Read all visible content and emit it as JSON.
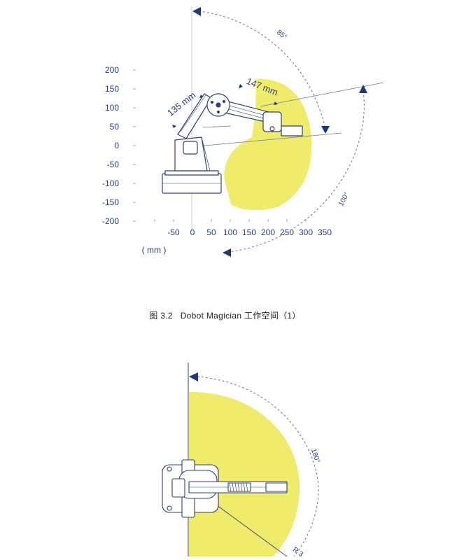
{
  "colors": {
    "workspace": "#eeec6a",
    "axis_text": "#2a3f7f",
    "arrow": "#1c3a7a",
    "robot_line": "#2d3f7a",
    "robot_fill": "#ffffff"
  },
  "figure1": {
    "y_ticks": [
      "200",
      "150",
      "100",
      "50",
      "0",
      "-50",
      "-100",
      "-150",
      "-200"
    ],
    "x_ticks": [
      "-50",
      "0",
      "50",
      "100",
      "150",
      "200",
      "250",
      "300",
      "350"
    ],
    "unit": "( mm )",
    "upper_arm_length": "135 mm",
    "forearm_length": "147 mm",
    "angle_top": "85°",
    "angle_side": "100°"
  },
  "caption": {
    "label": "图  3.2",
    "title": "Dobot Magician 工作空间（1）"
  },
  "figure2": {
    "angle": "180°",
    "radius_label": "R 3"
  }
}
